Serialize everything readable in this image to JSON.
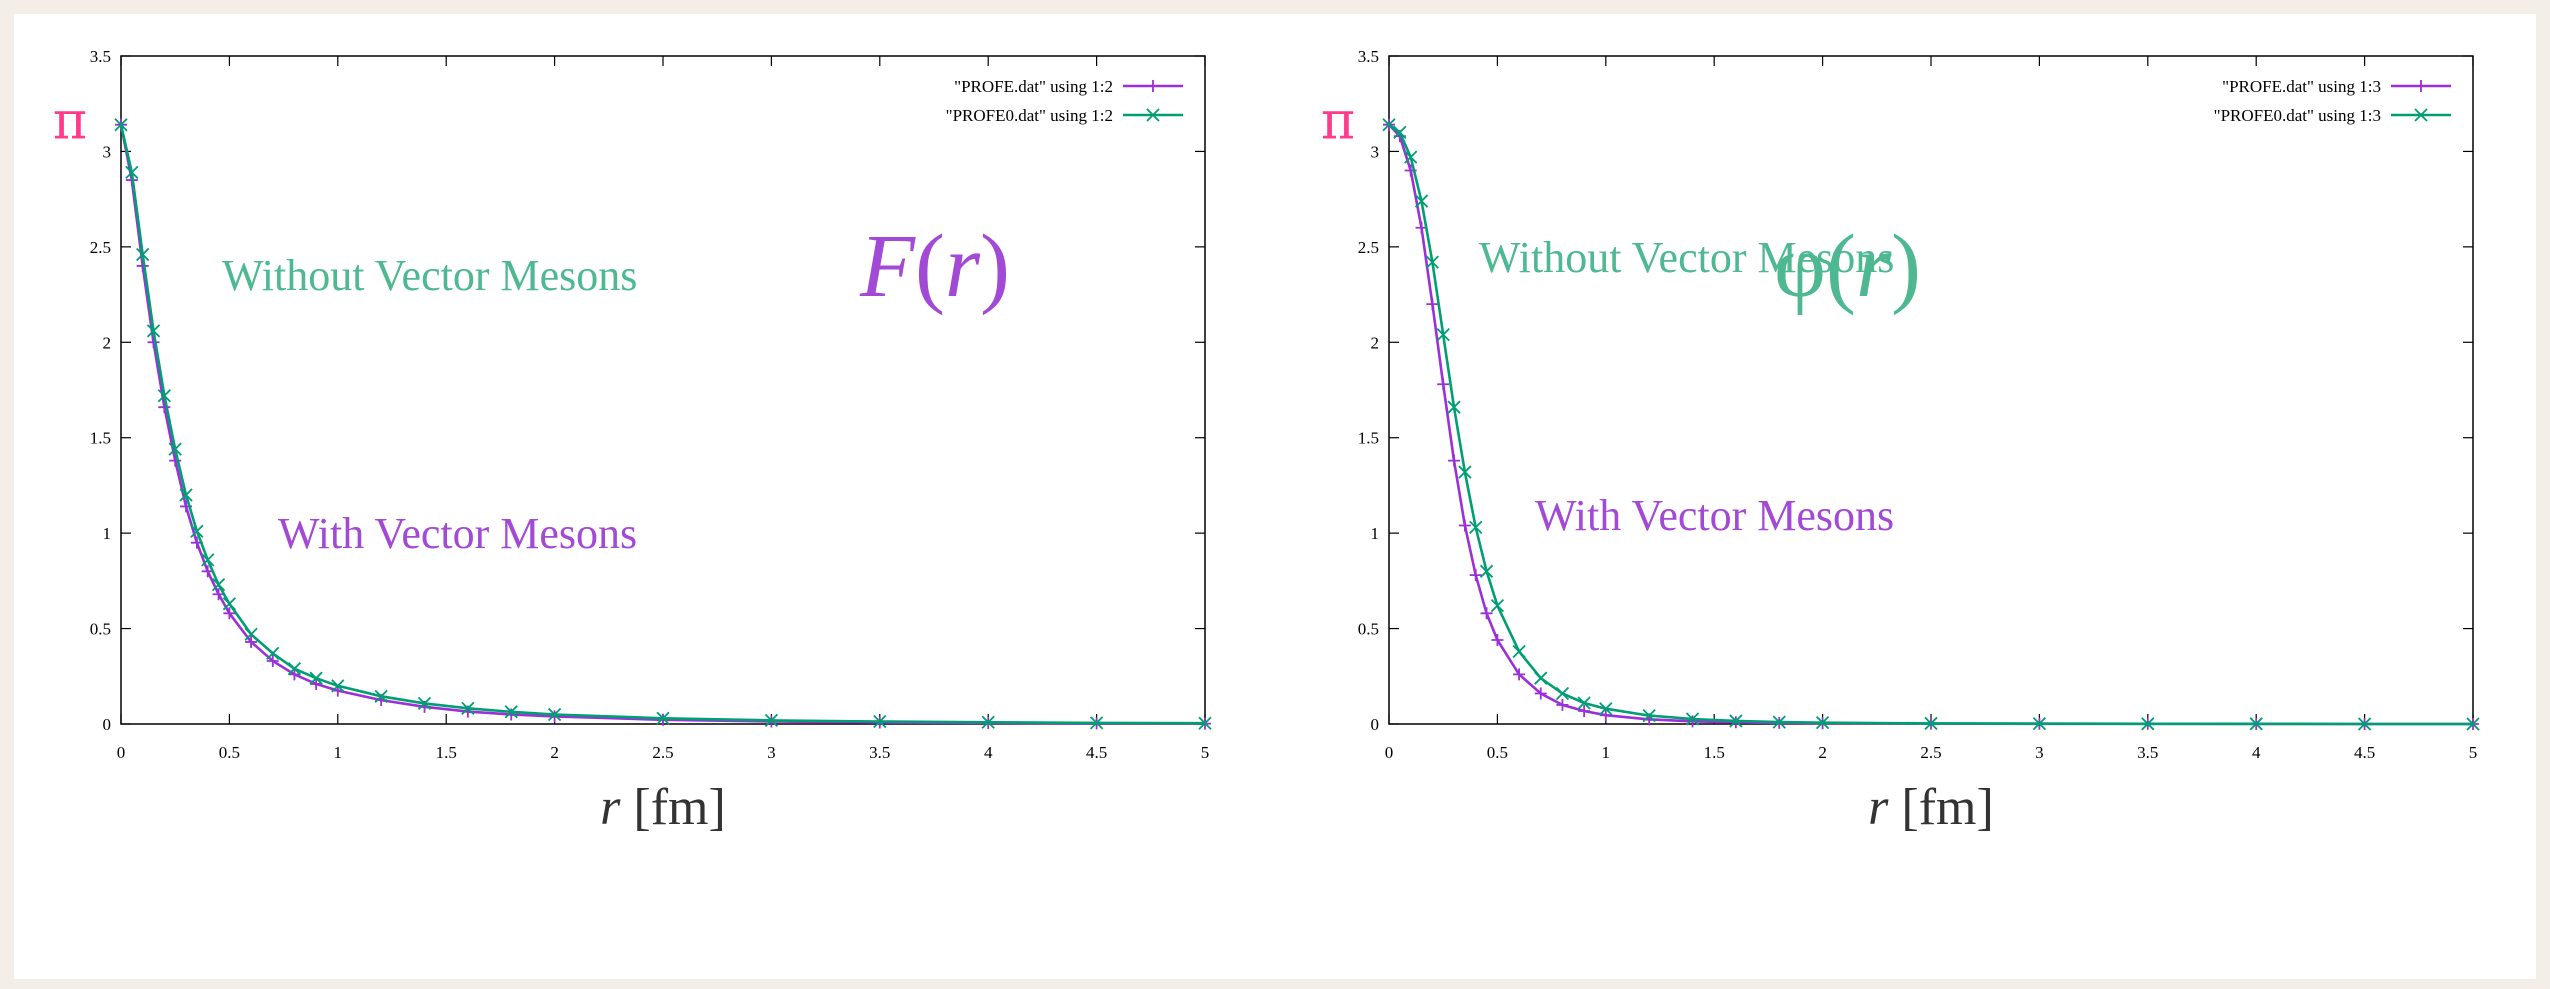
{
  "colors": {
    "with_vm": "#9b30d9",
    "without_vm": "#009e73",
    "pi": "#ff3c8c",
    "func_F": "#a24ad6",
    "func_phi": "#4db892",
    "annot_without": "#4db892",
    "annot_with": "#a24ad6"
  },
  "chart_data": [
    {
      "type": "line",
      "function_label": {
        "name": "F",
        "open": "(",
        "var": "r",
        "close": ")"
      },
      "pi_label": "π",
      "xlabel": {
        "var": "r",
        "unit": " [fm]"
      },
      "xlim": [
        0,
        5
      ],
      "ylim": [
        0,
        3.5
      ],
      "xticks": [
        "0",
        "0.5",
        "1",
        "1.5",
        "2",
        "2.5",
        "3",
        "3.5",
        "4",
        "4.5",
        "5"
      ],
      "yticks": [
        "0",
        "0.5",
        "1",
        "1.5",
        "2",
        "2.5",
        "3",
        "3.5"
      ],
      "legend_position": "top-right",
      "annotations": {
        "without": "Without Vector Mesons",
        "with": "With Vector Mesons"
      },
      "series": [
        {
          "name": "\"PROFE.dat\" using 1:2",
          "marker": "plus",
          "x": [
            0,
            0.05,
            0.1,
            0.15,
            0.2,
            0.25,
            0.3,
            0.35,
            0.4,
            0.45,
            0.5,
            0.6,
            0.7,
            0.8,
            0.9,
            1.0,
            1.2,
            1.4,
            1.6,
            1.8,
            2.0,
            2.5,
            3.0,
            3.5,
            4.0,
            4.5,
            5.0
          ],
          "y": [
            3.14,
            2.85,
            2.4,
            2.0,
            1.66,
            1.38,
            1.14,
            0.95,
            0.8,
            0.68,
            0.58,
            0.43,
            0.33,
            0.26,
            0.21,
            0.175,
            0.125,
            0.09,
            0.065,
            0.05,
            0.04,
            0.022,
            0.013,
            0.008,
            0.005,
            0.003,
            0.002
          ]
        },
        {
          "name": "\"PROFE0.dat\" using 1:2",
          "marker": "cross",
          "x": [
            0,
            0.05,
            0.1,
            0.15,
            0.2,
            0.25,
            0.3,
            0.35,
            0.4,
            0.45,
            0.5,
            0.6,
            0.7,
            0.8,
            0.9,
            1.0,
            1.2,
            1.4,
            1.6,
            1.8,
            2.0,
            2.5,
            3.0,
            3.5,
            4.0,
            4.5,
            5.0
          ],
          "y": [
            3.14,
            2.89,
            2.46,
            2.06,
            1.72,
            1.44,
            1.2,
            1.01,
            0.86,
            0.73,
            0.63,
            0.47,
            0.37,
            0.29,
            0.24,
            0.2,
            0.145,
            0.108,
            0.082,
            0.064,
            0.05,
            0.03,
            0.019,
            0.013,
            0.009,
            0.006,
            0.004
          ]
        }
      ]
    },
    {
      "type": "line",
      "function_label": {
        "name": "φ",
        "open": "(",
        "var": "r",
        "close": ")"
      },
      "pi_label": "π",
      "xlabel": {
        "var": "r",
        "unit": " [fm]"
      },
      "xlim": [
        0,
        5
      ],
      "ylim": [
        0,
        3.5
      ],
      "xticks": [
        "0",
        "0.5",
        "1",
        "1.5",
        "2",
        "2.5",
        "3",
        "3.5",
        "4",
        "4.5",
        "5"
      ],
      "yticks": [
        "0",
        "0.5",
        "1",
        "1.5",
        "2",
        "2.5",
        "3",
        "3.5"
      ],
      "legend_position": "top-right",
      "annotations": {
        "without": "Without Vector Mesons",
        "with": "With Vector Mesons"
      },
      "series": [
        {
          "name": "\"PROFE.dat\" using 1:3",
          "marker": "plus",
          "x": [
            0,
            0.05,
            0.1,
            0.15,
            0.2,
            0.25,
            0.3,
            0.35,
            0.4,
            0.45,
            0.5,
            0.6,
            0.7,
            0.8,
            0.9,
            1.0,
            1.2,
            1.4,
            1.6,
            1.8,
            2.0,
            2.5,
            3.0,
            3.5,
            4.0,
            4.5,
            5.0
          ],
          "y": [
            3.14,
            3.08,
            2.9,
            2.6,
            2.2,
            1.78,
            1.38,
            1.04,
            0.78,
            0.58,
            0.44,
            0.26,
            0.16,
            0.1,
            0.068,
            0.046,
            0.024,
            0.014,
            0.009,
            0.006,
            0.004,
            0.002,
            0.001,
            0.001,
            0.0,
            0.0,
            0.0
          ]
        },
        {
          "name": "\"PROFE0.dat\" using 1:3",
          "marker": "cross",
          "x": [
            0,
            0.05,
            0.1,
            0.15,
            0.2,
            0.25,
            0.3,
            0.35,
            0.4,
            0.45,
            0.5,
            0.6,
            0.7,
            0.8,
            0.9,
            1.0,
            1.2,
            1.4,
            1.6,
            1.8,
            2.0,
            2.5,
            3.0,
            3.5,
            4.0,
            4.5,
            5.0
          ],
          "y": [
            3.14,
            3.1,
            2.97,
            2.74,
            2.42,
            2.04,
            1.66,
            1.32,
            1.03,
            0.8,
            0.62,
            0.38,
            0.24,
            0.16,
            0.11,
            0.08,
            0.044,
            0.026,
            0.016,
            0.01,
            0.007,
            0.003,
            0.002,
            0.001,
            0.001,
            0.0,
            0.0
          ]
        }
      ]
    }
  ]
}
